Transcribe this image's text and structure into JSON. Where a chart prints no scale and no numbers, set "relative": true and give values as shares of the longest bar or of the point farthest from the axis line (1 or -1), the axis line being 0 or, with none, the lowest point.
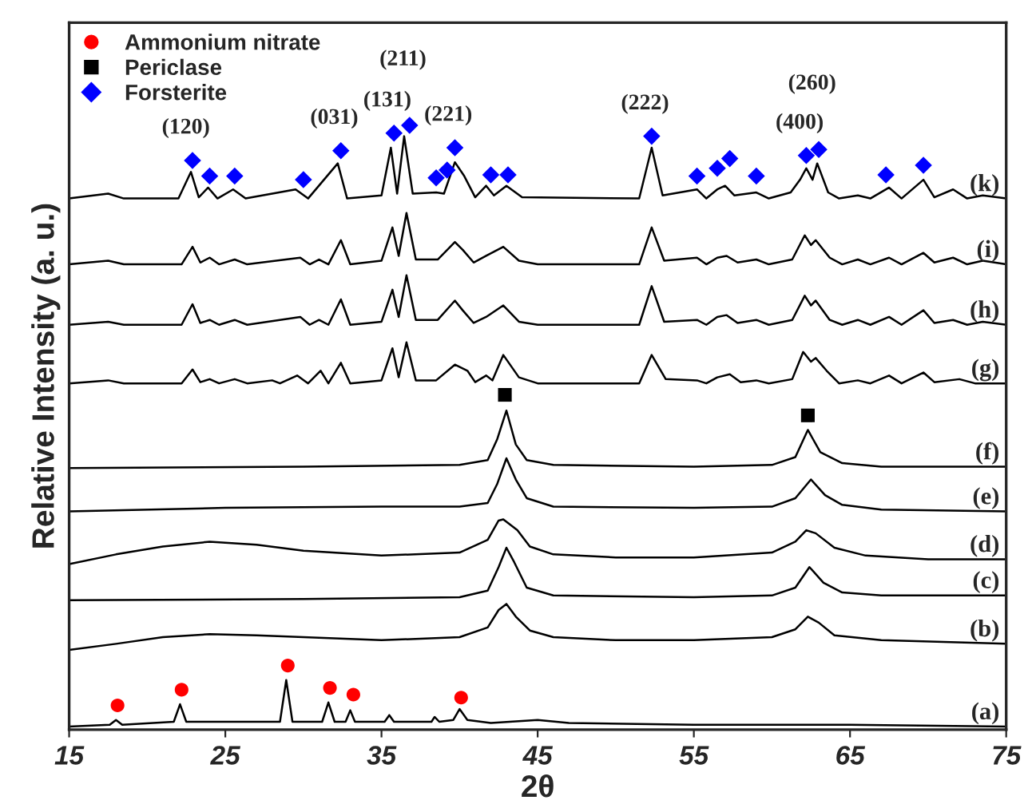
{
  "chart_data": {
    "type": "line",
    "relative": true,
    "xlabel": "2θ",
    "ylabel": "Relative Intensity (a. u.)",
    "xlim": [
      15,
      75
    ],
    "xticks": [
      15,
      25,
      35,
      45,
      55,
      65,
      75
    ],
    "grid": false,
    "legend": "top left",
    "series": [
      {
        "name": "(a)",
        "type": "line",
        "color": "#000000",
        "x": [
          15,
          17.6,
          18.0,
          18.4,
          21.7,
          22.1,
          22.5,
          28.5,
          28.9,
          29.3,
          31.2,
          31.6,
          32.0,
          32.7,
          33.0,
          33.3,
          35.2,
          35.5,
          35.8,
          38.2,
          38.4,
          38.7,
          39.6,
          40.0,
          40.5,
          42,
          45,
          47,
          55,
          65,
          75
        ],
        "values": [
          0.005,
          0.008,
          0.016,
          0.008,
          0.013,
          0.042,
          0.013,
          0.013,
          0.082,
          0.013,
          0.013,
          0.045,
          0.013,
          0.013,
          0.032,
          0.013,
          0.013,
          0.024,
          0.013,
          0.013,
          0.021,
          0.013,
          0.016,
          0.034,
          0.016,
          0.011,
          0.016,
          0.011,
          0.008,
          0.008,
          0.005
        ]
      },
      {
        "name": "(b)",
        "type": "line",
        "color": "#000000",
        "x": [
          15,
          18,
          21,
          24,
          27,
          30,
          35,
          40,
          41.8,
          42.5,
          43.0,
          43.6,
          44.5,
          46,
          50,
          55,
          60,
          61.5,
          62.3,
          63.0,
          64,
          67,
          75
        ],
        "values": [
          0.132,
          0.142,
          0.153,
          0.158,
          0.156,
          0.153,
          0.148,
          0.153,
          0.169,
          0.198,
          0.208,
          0.187,
          0.164,
          0.153,
          0.148,
          0.148,
          0.153,
          0.166,
          0.187,
          0.177,
          0.156,
          0.148,
          0.142
        ]
      },
      {
        "name": "(c)",
        "type": "line",
        "color": "#000000",
        "x": [
          15,
          30,
          40,
          41.8,
          42.5,
          43.0,
          43.5,
          44.3,
          46,
          55,
          60,
          61.5,
          62.4,
          63.3,
          64.5,
          67,
          75
        ],
        "values": [
          0.214,
          0.216,
          0.219,
          0.23,
          0.269,
          0.301,
          0.277,
          0.235,
          0.222,
          0.219,
          0.222,
          0.235,
          0.269,
          0.243,
          0.227,
          0.222,
          0.222
        ]
      },
      {
        "name": "(d)",
        "type": "line",
        "color": "#000000",
        "x": [
          15,
          18,
          21,
          24,
          27,
          30,
          35,
          40,
          41.8,
          42.5,
          42.8,
          43.2,
          43.7,
          44.5,
          46,
          50,
          55,
          60,
          61.5,
          62.2,
          62.8,
          64,
          66,
          70,
          75
        ],
        "values": [
          0.274,
          0.29,
          0.303,
          0.311,
          0.306,
          0.296,
          0.288,
          0.293,
          0.314,
          0.346,
          0.348,
          0.34,
          0.33,
          0.303,
          0.29,
          0.285,
          0.285,
          0.293,
          0.311,
          0.33,
          0.325,
          0.301,
          0.288,
          0.282,
          0.282
        ]
      },
      {
        "name": "(e)",
        "type": "line",
        "color": "#000000",
        "x": [
          15,
          25,
          35,
          40,
          41.8,
          42.4,
          43.0,
          43.6,
          44.3,
          46,
          55,
          60,
          61.5,
          62.5,
          63.4,
          64.5,
          67,
          75
        ],
        "values": [
          0.361,
          0.367,
          0.369,
          0.369,
          0.375,
          0.406,
          0.449,
          0.414,
          0.383,
          0.369,
          0.367,
          0.369,
          0.383,
          0.414,
          0.388,
          0.372,
          0.364,
          0.361
        ]
      },
      {
        "name": "(f)",
        "type": "line",
        "color": "#000000",
        "x": [
          15,
          30,
          40,
          41.8,
          42.4,
          43.0,
          43.6,
          44.3,
          46,
          55,
          60,
          61.5,
          62.3,
          63.1,
          64.5,
          67,
          75
        ],
        "values": [
          0.433,
          0.435,
          0.438,
          0.446,
          0.48,
          0.528,
          0.472,
          0.446,
          0.438,
          0.435,
          0.438,
          0.451,
          0.496,
          0.459,
          0.441,
          0.435,
          0.435
        ]
      },
      {
        "name": "(g)",
        "type": "line",
        "color": "#000000",
        "x": [
          15,
          17.5,
          18.5,
          22.2,
          22.9,
          23.4,
          24.0,
          24.6,
          25.6,
          26.4,
          28.0,
          28.5,
          29.6,
          30.3,
          31.1,
          31.6,
          32.4,
          33.0,
          35.0,
          35.7,
          36.1,
          36.6,
          37.2,
          38.5,
          39.7,
          40.5,
          41.0,
          41.7,
          42.1,
          42.8,
          43.8,
          45,
          51.5,
          52.3,
          53.2,
          55.2,
          55.8,
          56.5,
          57.3,
          58,
          59.0,
          59.8,
          61.3,
          62.0,
          62.5,
          62.8,
          63.5,
          64.3,
          65.5,
          66.3,
          67.5,
          68.3,
          69.7,
          70.4,
          72.0,
          73,
          75
        ],
        "values": [
          0.573,
          0.578,
          0.573,
          0.573,
          0.596,
          0.575,
          0.58,
          0.573,
          0.58,
          0.573,
          0.578,
          0.573,
          0.586,
          0.573,
          0.594,
          0.573,
          0.607,
          0.573,
          0.578,
          0.631,
          0.583,
          0.641,
          0.578,
          0.578,
          0.604,
          0.594,
          0.575,
          0.586,
          0.578,
          0.62,
          0.583,
          0.573,
          0.573,
          0.62,
          0.58,
          0.578,
          0.573,
          0.583,
          0.588,
          0.575,
          0.578,
          0.573,
          0.58,
          0.625,
          0.609,
          0.615,
          0.594,
          0.573,
          0.578,
          0.573,
          0.586,
          0.573,
          0.591,
          0.575,
          0.58,
          0.573,
          0.573
        ]
      },
      {
        "name": "(h)",
        "type": "line",
        "color": "#000000",
        "x": [
          15,
          17.5,
          18.5,
          22.2,
          22.9,
          23.4,
          24.0,
          24.6,
          25.6,
          26.4,
          29.8,
          30.4,
          31.0,
          31.6,
          32.4,
          33.0,
          35.0,
          35.7,
          36.1,
          36.6,
          37.2,
          38.6,
          39.7,
          40.2,
          40.9,
          41.7,
          42.8,
          43.8,
          45,
          51.5,
          52.3,
          53.1,
          55.2,
          55.8,
          56.5,
          57.1,
          57.8,
          59.0,
          59.8,
          61.3,
          62.1,
          62.5,
          62.8,
          63.7,
          64.5,
          65.5,
          66.3,
          67.5,
          68.3,
          69.7,
          70.4,
          71.6,
          72.5,
          73.5,
          75
        ],
        "values": [
          0.67,
          0.675,
          0.67,
          0.67,
          0.704,
          0.673,
          0.678,
          0.67,
          0.678,
          0.67,
          0.683,
          0.67,
          0.678,
          0.67,
          0.712,
          0.67,
          0.675,
          0.728,
          0.683,
          0.752,
          0.678,
          0.678,
          0.71,
          0.694,
          0.673,
          0.683,
          0.702,
          0.675,
          0.67,
          0.67,
          0.734,
          0.675,
          0.678,
          0.67,
          0.683,
          0.686,
          0.673,
          0.678,
          0.67,
          0.678,
          0.718,
          0.702,
          0.71,
          0.678,
          0.67,
          0.678,
          0.67,
          0.683,
          0.67,
          0.694,
          0.673,
          0.678,
          0.67,
          0.675,
          0.67
        ]
      },
      {
        "name": "(i)",
        "type": "line",
        "color": "#000000",
        "x": [
          15,
          17.5,
          18.5,
          22.2,
          22.9,
          23.4,
          24.0,
          24.6,
          25.6,
          26.4,
          29.8,
          30.4,
          31.0,
          31.6,
          32.4,
          33.0,
          35.0,
          35.7,
          36.1,
          36.6,
          37.2,
          38.6,
          39.7,
          40.2,
          40.9,
          41.7,
          42.8,
          43.8,
          45,
          51.5,
          52.3,
          53.1,
          55.2,
          55.8,
          56.5,
          57.1,
          57.8,
          59.0,
          59.8,
          61.3,
          62.1,
          62.5,
          62.8,
          63.7,
          64.5,
          65.5,
          66.3,
          67.5,
          68.3,
          69.7,
          70.4,
          71.6,
          72.5,
          73.5,
          75
        ],
        "values": [
          0.77,
          0.776,
          0.77,
          0.77,
          0.799,
          0.773,
          0.781,
          0.77,
          0.778,
          0.77,
          0.781,
          0.77,
          0.778,
          0.77,
          0.81,
          0.77,
          0.776,
          0.831,
          0.784,
          0.855,
          0.778,
          0.778,
          0.807,
          0.794,
          0.773,
          0.784,
          0.799,
          0.776,
          0.77,
          0.77,
          0.831,
          0.776,
          0.781,
          0.77,
          0.781,
          0.784,
          0.773,
          0.778,
          0.77,
          0.778,
          0.818,
          0.802,
          0.81,
          0.781,
          0.77,
          0.778,
          0.77,
          0.781,
          0.77,
          0.789,
          0.773,
          0.781,
          0.77,
          0.776,
          0.77
        ]
      },
      {
        "name": "(k)",
        "type": "line",
        "color": "#000000",
        "x": [
          15,
          17.5,
          18.5,
          22.0,
          22.8,
          23.3,
          23.9,
          24.5,
          25.5,
          26.3,
          29.5,
          30.3,
          32.2,
          32.8,
          35.0,
          35.6,
          36.0,
          36.45,
          37.0,
          38.5,
          39.0,
          39.7,
          40.3,
          41.0,
          41.7,
          42.2,
          43.0,
          44.0,
          51.5,
          52.3,
          53.0,
          55.2,
          55.8,
          56.5,
          57.0,
          57.6,
          59.0,
          59.8,
          61.2,
          61.8,
          62.2,
          62.6,
          62.9,
          63.6,
          64.3,
          65.5,
          66.3,
          67.5,
          68.3,
          69.7,
          70.4,
          71.6,
          72.5,
          73.5,
          75
        ],
        "values": [
          0.879,
          0.887,
          0.879,
          0.879,
          0.923,
          0.881,
          0.897,
          0.879,
          0.894,
          0.879,
          0.894,
          0.879,
          0.937,
          0.879,
          0.884,
          0.963,
          0.887,
          0.982,
          0.887,
          0.889,
          0.887,
          0.939,
          0.916,
          0.881,
          0.9,
          0.884,
          0.9,
          0.881,
          0.879,
          0.963,
          0.884,
          0.894,
          0.879,
          0.894,
          0.9,
          0.884,
          0.889,
          0.879,
          0.889,
          0.91,
          0.929,
          0.91,
          0.937,
          0.889,
          0.879,
          0.884,
          0.879,
          0.897,
          0.879,
          0.91,
          0.881,
          0.894,
          0.879,
          0.884,
          0.879
        ]
      },
      {
        "name": "Ammonium nitrate",
        "type": "scatter",
        "marker": "circle",
        "color": "#ff0000",
        "x": [
          18.1,
          22.2,
          29.0,
          31.7,
          33.2,
          40.1
        ],
        "values": [
          0.04,
          0.066,
          0.106,
          0.069,
          0.058,
          0.053
        ]
      },
      {
        "name": "Periclase",
        "type": "scatter",
        "marker": "square",
        "color": "#000000",
        "x": [
          42.9,
          62.3
        ],
        "values": [
          0.554,
          0.52
        ]
      },
      {
        "name": "Forsterite",
        "type": "scatter",
        "marker": "diamond",
        "color": "#0000ff",
        "x": [
          22.9,
          24.0,
          25.6,
          30.0,
          32.4,
          35.8,
          36.8,
          38.5,
          39.2,
          39.7,
          42.0,
          43.1,
          52.3,
          55.2,
          56.5,
          57.3,
          59.0,
          62.2,
          63.0,
          67.3,
          69.7
        ],
        "values": [
          0.942,
          0.916,
          0.916,
          0.91,
          0.958,
          0.987,
          1.0,
          0.913,
          0.926,
          0.963,
          0.918,
          0.918,
          0.982,
          0.916,
          0.929,
          0.945,
          0.916,
          0.95,
          0.96,
          0.918,
          0.934
        ]
      }
    ],
    "annotations": [
      {
        "text": "(120)",
        "x": 22.9,
        "y": 0.942
      },
      {
        "text": "(031)",
        "x": 32.4,
        "y": 0.958
      },
      {
        "text": "(131)",
        "x": 35.8,
        "y": 0.987
      },
      {
        "text": "(211)",
        "x": 36.8,
        "y": 1.0
      },
      {
        "text": "(221)",
        "x": 39.7,
        "y": 0.963
      },
      {
        "text": "(222)",
        "x": 52.3,
        "y": 0.982
      },
      {
        "text": "(400)",
        "x": 62.2,
        "y": 0.95
      },
      {
        "text": "(260)",
        "x": 63.0,
        "y": 0.96
      }
    ]
  }
}
